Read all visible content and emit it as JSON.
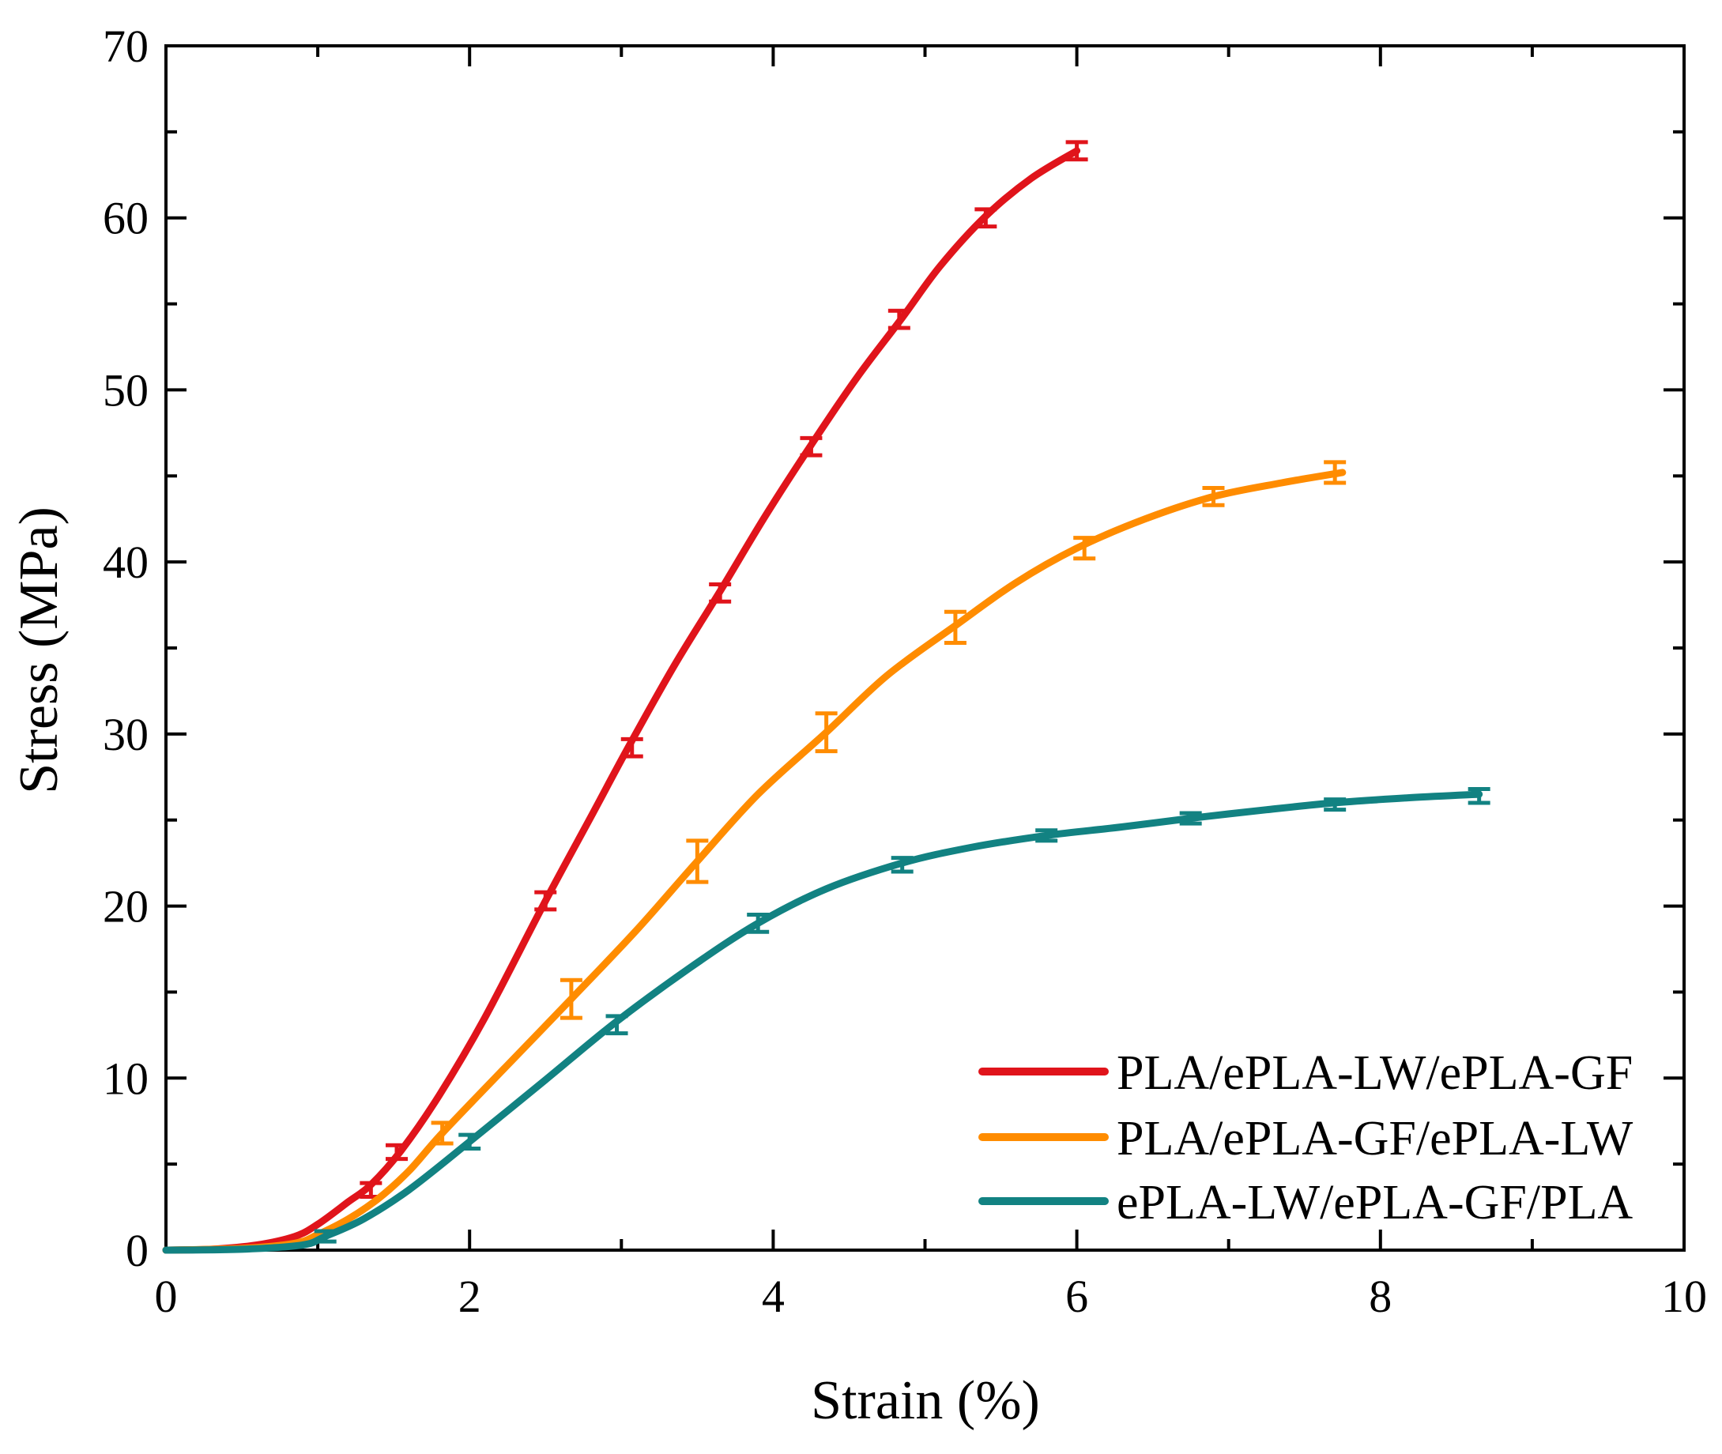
{
  "chart_data": {
    "type": "line",
    "title": "",
    "xlabel": "Strain (%)",
    "ylabel": "Stress (MPa)",
    "xlim": [
      0,
      10
    ],
    "ylim": [
      0,
      70
    ],
    "x_ticks": [
      "0",
      "2",
      "4",
      "6",
      "8",
      "10"
    ],
    "y_ticks": [
      "0",
      "10",
      "20",
      "30",
      "40",
      "50",
      "60",
      "70"
    ],
    "grid": false,
    "legend_position": "bottom-right",
    "series": [
      {
        "name": "PLA/ePLA-LW/ePLA-GF",
        "color": "#e0141b",
        "points": [
          [
            0,
            0
          ],
          [
            0.3,
            0.05
          ],
          [
            0.6,
            0.3
          ],
          [
            0.85,
            0.8
          ],
          [
            1.0,
            1.5
          ],
          [
            1.2,
            2.8
          ],
          [
            1.35,
            3.8
          ],
          [
            1.55,
            5.8
          ],
          [
            1.8,
            9.0
          ],
          [
            2.1,
            13.5
          ],
          [
            2.5,
            20.3
          ],
          [
            2.8,
            25.2
          ],
          [
            3.05,
            29.3
          ],
          [
            3.35,
            34.0
          ],
          [
            3.65,
            38.3
          ],
          [
            3.95,
            42.7
          ],
          [
            4.25,
            46.8
          ],
          [
            4.55,
            50.7
          ],
          [
            4.85,
            54.2
          ],
          [
            5.1,
            57.2
          ],
          [
            5.4,
            60.1
          ],
          [
            5.7,
            62.3
          ],
          [
            6.0,
            63.9
          ]
        ],
        "error_bars": [
          [
            1.35,
            3.5,
            0.4
          ],
          [
            1.52,
            5.7,
            0.4
          ],
          [
            2.5,
            20.3,
            0.5
          ],
          [
            3.07,
            29.2,
            0.5
          ],
          [
            3.65,
            38.2,
            0.5
          ],
          [
            4.25,
            46.7,
            0.5
          ],
          [
            4.83,
            54.1,
            0.5
          ],
          [
            5.4,
            60.0,
            0.5
          ],
          [
            6.0,
            63.9,
            0.5
          ]
        ]
      },
      {
        "name": "PLA/ePLA-GF/ePLA-LW",
        "color": "#ff8c00",
        "points": [
          [
            0,
            0
          ],
          [
            0.5,
            0.1
          ],
          [
            0.85,
            0.4
          ],
          [
            1.0,
            0.9
          ],
          [
            1.2,
            1.8
          ],
          [
            1.4,
            3.0
          ],
          [
            1.6,
            4.6
          ],
          [
            1.82,
            6.8
          ],
          [
            2.2,
            10.3
          ],
          [
            2.67,
            14.6
          ],
          [
            3.1,
            18.6
          ],
          [
            3.5,
            22.6
          ],
          [
            3.9,
            26.5
          ],
          [
            4.35,
            30.1
          ],
          [
            4.75,
            33.4
          ],
          [
            5.2,
            36.3
          ],
          [
            5.6,
            38.8
          ],
          [
            6.0,
            40.8
          ],
          [
            6.45,
            42.5
          ],
          [
            6.9,
            43.8
          ],
          [
            7.35,
            44.6
          ],
          [
            7.75,
            45.2
          ]
        ],
        "error_bars": [
          [
            1.82,
            6.8,
            0.6
          ],
          [
            2.67,
            14.6,
            1.1
          ],
          [
            3.5,
            22.6,
            1.2
          ],
          [
            4.35,
            30.1,
            1.1
          ],
          [
            5.2,
            36.2,
            0.9
          ],
          [
            6.05,
            40.8,
            0.6
          ],
          [
            6.9,
            43.8,
            0.5
          ],
          [
            7.7,
            45.2,
            0.6
          ]
        ]
      },
      {
        "name": "ePLA-LW/ePLA-GF/PLA",
        "color": "#128282",
        "points": [
          [
            0,
            0
          ],
          [
            0.5,
            0.05
          ],
          [
            0.9,
            0.3
          ],
          [
            1.05,
            0.8
          ],
          [
            1.3,
            1.8
          ],
          [
            1.6,
            3.5
          ],
          [
            2.0,
            6.3
          ],
          [
            2.5,
            9.9
          ],
          [
            2.97,
            13.3
          ],
          [
            3.45,
            16.4
          ],
          [
            3.9,
            19.0
          ],
          [
            4.35,
            21.0
          ],
          [
            4.85,
            22.5
          ],
          [
            5.3,
            23.4
          ],
          [
            5.8,
            24.1
          ],
          [
            6.3,
            24.6
          ],
          [
            6.75,
            25.1
          ],
          [
            7.25,
            25.6
          ],
          [
            7.7,
            26.0
          ],
          [
            8.2,
            26.3
          ],
          [
            8.65,
            26.5
          ]
        ],
        "error_bars": [
          [
            1.05,
            0.8,
            0.3
          ],
          [
            2.0,
            6.3,
            0.4
          ],
          [
            2.97,
            13.1,
            0.5
          ],
          [
            3.9,
            19.0,
            0.5
          ],
          [
            4.85,
            22.4,
            0.4
          ],
          [
            5.8,
            24.1,
            0.3
          ],
          [
            6.75,
            25.1,
            0.3
          ],
          [
            7.7,
            25.9,
            0.3
          ],
          [
            8.65,
            26.4,
            0.4
          ]
        ]
      }
    ]
  }
}
